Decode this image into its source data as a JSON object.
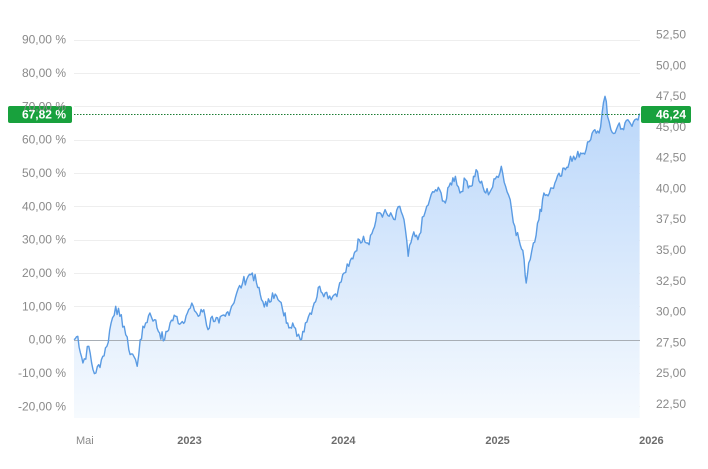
{
  "chart_data": {
    "type": "area",
    "title": "",
    "xlabel": "",
    "ylabel": "",
    "grid": true,
    "legend": "none",
    "x_ticks": [
      {
        "label": "Mai",
        "date": "2022-05-01",
        "bold": false
      },
      {
        "label": "2023",
        "date": "2023-01-01",
        "bold": true
      },
      {
        "label": "2024",
        "date": "2024-01-01",
        "bold": true
      },
      {
        "label": "2025",
        "date": "2025-01-01",
        "bold": true
      },
      {
        "label": "2026",
        "date": "2026-01-01",
        "bold": true
      }
    ],
    "xlim": [
      "2022-05-01",
      "2026-01-03"
    ],
    "left_axis": {
      "ticks": [
        "90,00 %",
        "80,00 %",
        "70,00 %",
        "60,00 %",
        "50,00 %",
        "40,00 %",
        "30,00 %",
        "20,00 %",
        "10,00 %",
        "0,00 %",
        "-10,00 %",
        "-20,00 %"
      ],
      "values": [
        90,
        80,
        70,
        60,
        50,
        40,
        30,
        20,
        10,
        0,
        -10,
        -20
      ],
      "ylim": [
        -23.5,
        96.5
      ]
    },
    "right_axis": {
      "ticks": [
        "52,50",
        "50,00",
        "47,50",
        "45,00",
        "42,50",
        "40,00",
        "37,50",
        "35,00",
        "32,50",
        "30,00",
        "27,50",
        "25,00",
        "22,50"
      ],
      "values": [
        52.5,
        50.0,
        47.5,
        45.0,
        42.5,
        40.0,
        37.5,
        35.0,
        32.5,
        30.0,
        27.5,
        25.0,
        22.5
      ],
      "ylim": [
        21.35,
        53.85
      ]
    },
    "baseline_pct": 0,
    "current": {
      "pct_label": "67,82 %",
      "price_label": "46,24",
      "pct": 67.82
    },
    "series": [
      {
        "points": [
          [
            "2022-05-01",
            0
          ],
          [
            "2022-05-10",
            1
          ],
          [
            "2022-05-22",
            -7
          ],
          [
            "2022-06-05",
            -2
          ],
          [
            "2022-06-15",
            -9
          ],
          [
            "2022-06-22",
            -10
          ],
          [
            "2022-07-05",
            -6
          ],
          [
            "2022-07-18",
            -2
          ],
          [
            "2022-07-28",
            5
          ],
          [
            "2022-08-08",
            10
          ],
          [
            "2022-08-18",
            7
          ],
          [
            "2022-08-28",
            4
          ],
          [
            "2022-09-08",
            -3
          ],
          [
            "2022-09-20",
            -5
          ],
          [
            "2022-09-28",
            -8
          ],
          [
            "2022-10-05",
            0
          ],
          [
            "2022-10-18",
            5
          ],
          [
            "2022-10-28",
            8
          ],
          [
            "2022-11-08",
            6
          ],
          [
            "2022-11-20",
            2
          ],
          [
            "2022-12-02",
            0
          ],
          [
            "2022-12-15",
            5
          ],
          [
            "2022-12-28",
            7
          ],
          [
            "2023-01-10",
            5
          ],
          [
            "2023-01-25",
            8
          ],
          [
            "2023-02-08",
            10
          ],
          [
            "2023-02-20",
            7
          ],
          [
            "2023-03-05",
            9
          ],
          [
            "2023-03-15",
            3
          ],
          [
            "2023-03-25",
            7
          ],
          [
            "2023-04-10",
            5
          ],
          [
            "2023-04-25",
            7
          ],
          [
            "2023-05-10",
            10
          ],
          [
            "2023-05-22",
            14
          ],
          [
            "2023-06-05",
            17
          ],
          [
            "2023-06-18",
            19
          ],
          [
            "2023-06-28",
            20
          ],
          [
            "2023-07-08",
            17
          ],
          [
            "2023-07-20",
            12
          ],
          [
            "2023-08-02",
            10
          ],
          [
            "2023-08-15",
            14
          ],
          [
            "2023-08-28",
            12
          ],
          [
            "2023-09-08",
            9
          ],
          [
            "2023-09-20",
            5
          ],
          [
            "2023-10-02",
            5
          ],
          [
            "2023-10-12",
            1
          ],
          [
            "2023-10-20",
            0
          ],
          [
            "2023-11-01",
            5
          ],
          [
            "2023-11-12",
            8
          ],
          [
            "2023-11-22",
            11
          ],
          [
            "2023-12-05",
            16
          ],
          [
            "2023-12-18",
            14
          ],
          [
            "2024-01-05",
            13
          ],
          [
            "2024-01-18",
            15
          ],
          [
            "2024-02-01",
            20
          ],
          [
            "2024-02-12",
            22
          ],
          [
            "2024-02-25",
            26
          ],
          [
            "2024-03-08",
            30
          ],
          [
            "2024-03-18",
            31
          ],
          [
            "2024-03-28",
            29
          ],
          [
            "2024-04-10",
            33
          ],
          [
            "2024-04-22",
            38
          ],
          [
            "2024-05-05",
            38
          ],
          [
            "2024-05-18",
            37
          ],
          [
            "2024-06-01",
            36
          ],
          [
            "2024-06-12",
            40
          ],
          [
            "2024-06-22",
            36
          ],
          [
            "2024-07-02",
            25
          ],
          [
            "2024-07-12",
            31
          ],
          [
            "2024-07-25",
            30
          ],
          [
            "2024-08-08",
            37
          ],
          [
            "2024-08-22",
            42
          ],
          [
            "2024-09-05",
            45
          ],
          [
            "2024-09-18",
            44
          ],
          [
            "2024-09-28",
            41
          ],
          [
            "2024-10-10",
            47
          ],
          [
            "2024-10-22",
            49
          ],
          [
            "2024-11-02",
            44
          ],
          [
            "2024-11-15",
            48
          ],
          [
            "2024-11-28",
            46
          ],
          [
            "2024-12-10",
            51
          ],
          [
            "2024-12-20",
            47
          ],
          [
            "2025-01-02",
            44
          ],
          [
            "2025-01-15",
            45
          ],
          [
            "2025-01-28",
            49
          ],
          [
            "2025-02-08",
            52
          ],
          [
            "2025-02-18",
            46
          ],
          [
            "2025-03-01",
            42
          ],
          [
            "2025-03-12",
            34
          ],
          [
            "2025-03-22",
            30
          ],
          [
            "2025-04-03",
            24
          ],
          [
            "2025-04-08",
            17
          ],
          [
            "2025-04-14",
            23
          ],
          [
            "2025-04-25",
            29
          ],
          [
            "2025-05-08",
            36
          ],
          [
            "2025-05-20",
            44
          ],
          [
            "2025-06-02",
            44
          ],
          [
            "2025-06-15",
            47
          ],
          [
            "2025-06-28",
            49
          ],
          [
            "2025-07-10",
            51
          ],
          [
            "2025-07-22",
            55
          ],
          [
            "2025-08-02",
            54
          ],
          [
            "2025-08-15",
            56
          ],
          [
            "2025-08-28",
            57
          ],
          [
            "2025-09-08",
            60
          ],
          [
            "2025-09-18",
            63
          ],
          [
            "2025-09-28",
            62
          ],
          [
            "2025-10-05",
            68
          ],
          [
            "2025-10-12",
            73
          ],
          [
            "2025-10-18",
            67
          ],
          [
            "2025-10-26",
            63
          ],
          [
            "2025-11-05",
            62
          ],
          [
            "2025-11-15",
            65
          ],
          [
            "2025-11-25",
            63
          ],
          [
            "2025-12-05",
            66
          ],
          [
            "2025-12-15",
            64
          ],
          [
            "2025-12-22",
            66
          ],
          [
            "2026-01-02",
            67.82
          ]
        ]
      }
    ]
  },
  "colors": {
    "line": "#5a9be3",
    "area_top": "#b9d6fa",
    "area_bottom": "#f6fafe",
    "current_marker": "#18a13d",
    "current_line": "#1b7d33",
    "grid": "#eeeeee",
    "zero_line": "#a8aeb5",
    "tick_text": "#8a8a8a"
  }
}
